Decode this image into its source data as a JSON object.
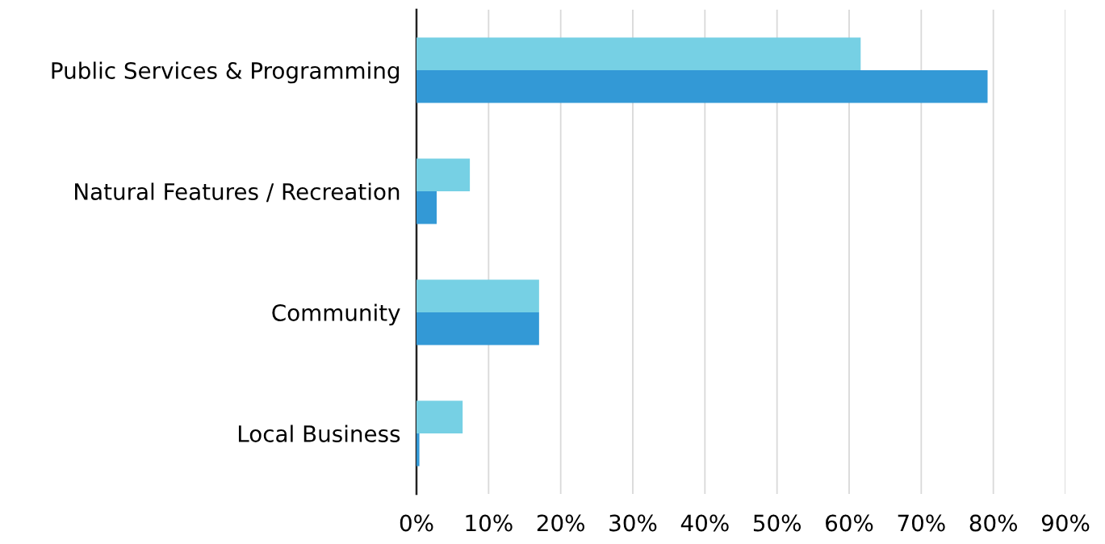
{
  "chart_data": {
    "type": "bar",
    "orientation": "horizontal",
    "categories": [
      "Public Services & Programming",
      "Natural Features / Recreation",
      "Community",
      "Local Business"
    ],
    "series": [
      {
        "color": "#76d0e4",
        "values": [
          61.6,
          7.4,
          17.0,
          6.4
        ]
      },
      {
        "color": "#3399d6",
        "values": [
          79.2,
          2.8,
          17.0,
          0.4
        ]
      }
    ],
    "xlim": [
      0,
      90
    ],
    "xticks": [
      {
        "value": 0,
        "label": "0%"
      },
      {
        "value": 10,
        "label": "10%"
      },
      {
        "value": 20,
        "label": "20%"
      },
      {
        "value": 30,
        "label": "30%"
      },
      {
        "value": 40,
        "label": "40%"
      },
      {
        "value": 50,
        "label": "50%"
      },
      {
        "value": 60,
        "label": "60%"
      },
      {
        "value": 70,
        "label": "70%"
      },
      {
        "value": 80,
        "label": "80%"
      },
      {
        "value": 90,
        "label": "90%"
      }
    ],
    "grid": "x"
  }
}
